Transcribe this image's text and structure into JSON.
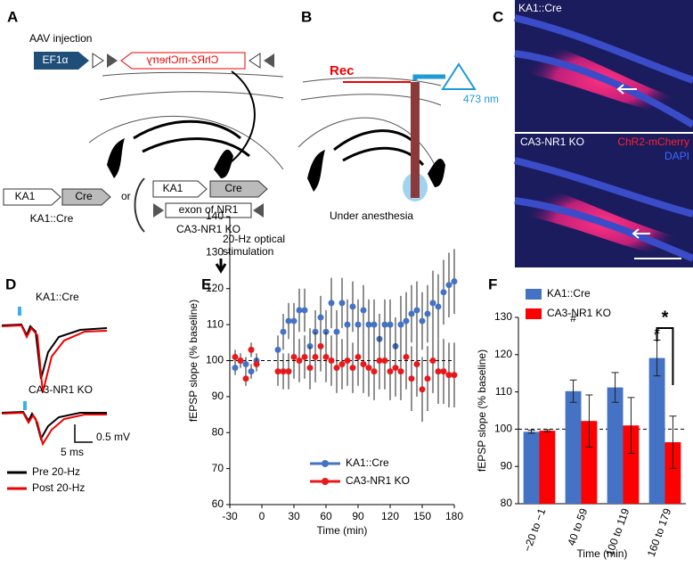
{
  "panels": {
    "a": {
      "label": "A",
      "injection": "AAV injection",
      "promoter": "EF1α",
      "construct": "ChR2-mCherry",
      "line1_gene": "KA1",
      "line1_cre": "Cre",
      "or": "or",
      "line2_gene": "KA1",
      "line2_cre": "Cre",
      "line2_exon": "exon of NR1",
      "line1_name": "KA1::Cre",
      "line2_name": "CA3-NR1 KO"
    },
    "b": {
      "label": "B",
      "rec": "Rec",
      "wavelength": "473 nm",
      "condition": "Under anesthesia"
    },
    "c": {
      "label": "C",
      "top_name": "KA1::Cre",
      "bottom_name": "CA3-NR1 KO",
      "red_label": "ChR2-mCherry",
      "blue_label": "DAPI"
    },
    "d": {
      "label": "D",
      "top_name": "KA1::Cre",
      "bottom_name": "CA3-NR1 KO",
      "scale_v": "0.5 mV",
      "scale_t": "5 ms",
      "pre": "Pre 20-Hz",
      "post": "Post 20-Hz"
    }
  },
  "chart_data": [
    {
      "type": "scatter",
      "panel_label": "E",
      "x_label": "Time (min)",
      "y_label": "fEPSP slope (% baseline)",
      "annotation": [
        "20-Hz optical",
        "stimulation"
      ],
      "reference_line": 100,
      "xlim": [
        -30,
        180
      ],
      "xticks": [
        -30,
        0,
        30,
        60,
        90,
        120,
        150,
        180
      ],
      "ylim": [
        60,
        140
      ],
      "yticks": [
        60,
        70,
        80,
        90,
        100,
        110,
        120,
        130,
        140
      ],
      "legend": "lower center",
      "x": [
        -25,
        -20,
        -15,
        -10,
        -5,
        15,
        20,
        25,
        30,
        35,
        40,
        45,
        50,
        55,
        60,
        65,
        70,
        75,
        80,
        85,
        90,
        95,
        100,
        105,
        110,
        115,
        120,
        125,
        130,
        135,
        140,
        145,
        150,
        155,
        160,
        165,
        170,
        175,
        180
      ],
      "series": [
        {
          "name": "KA1::Cre",
          "color": "#4472c4",
          "values": [
            98,
            100,
            99,
            97,
            100,
            103,
            108,
            111,
            111,
            114,
            114,
            104,
            108,
            112,
            108,
            116,
            108,
            116,
            110,
            115,
            110,
            114,
            110,
            110,
            106,
            110,
            110,
            104,
            110,
            111,
            113,
            114,
            111,
            113,
            116,
            115,
            119,
            121,
            122
          ],
          "errors": [
            2,
            2,
            2,
            2,
            2,
            4,
            5,
            5,
            5,
            6,
            6,
            5,
            6,
            6,
            6,
            7,
            6,
            7,
            7,
            7,
            7,
            7,
            7,
            7,
            7,
            7,
            7,
            8,
            8,
            8,
            8,
            8,
            8,
            8,
            9,
            9,
            9,
            9,
            9
          ]
        },
        {
          "name": "CA3-NR1 KO",
          "color": "#e8191c",
          "values": [
            101,
            100,
            95,
            103,
            99,
            97,
            97,
            97,
            101,
            100,
            101,
            98,
            101,
            104,
            101,
            100,
            98,
            99,
            100,
            98,
            101,
            99,
            98,
            97,
            100,
            100,
            97,
            98,
            97,
            101,
            95,
            99,
            92,
            95,
            100,
            97,
            97,
            96,
            96
          ],
          "errors": [
            2,
            2,
            2,
            2,
            2,
            4,
            5,
            5,
            6,
            6,
            6,
            6,
            7,
            7,
            7,
            7,
            7,
            7,
            7,
            7,
            8,
            8,
            8,
            8,
            8,
            8,
            8,
            8,
            8,
            9,
            9,
            9,
            9,
            9,
            9,
            9,
            9,
            9,
            9
          ]
        }
      ]
    },
    {
      "type": "bar",
      "panel_label": "F",
      "x_label": "Time (min)",
      "y_label": "fEPSP slope (% baseline)",
      "reference_line": 100,
      "annotations": [
        "#",
        "#",
        "*"
      ],
      "categories": [
        "−20 to −1",
        "40 to 59",
        "100 to 119",
        "160 to 179"
      ],
      "ylim": [
        80,
        130
      ],
      "yticks": [
        80,
        90,
        100,
        110,
        120,
        130
      ],
      "legend": "upper left",
      "series": [
        {
          "name": "KA1::Cre",
          "color": "#4472c4",
          "values": [
            99.3,
            110.2,
            111.2,
            119.1
          ],
          "errors": [
            0.4,
            3,
            4,
            4.8
          ]
        },
        {
          "name": "CA3-NR1 KO",
          "color": "#ff0000",
          "values": [
            99.6,
            102.2,
            101,
            96.5
          ],
          "errors": [
            0.3,
            7,
            7.5,
            7
          ]
        }
      ]
    }
  ]
}
